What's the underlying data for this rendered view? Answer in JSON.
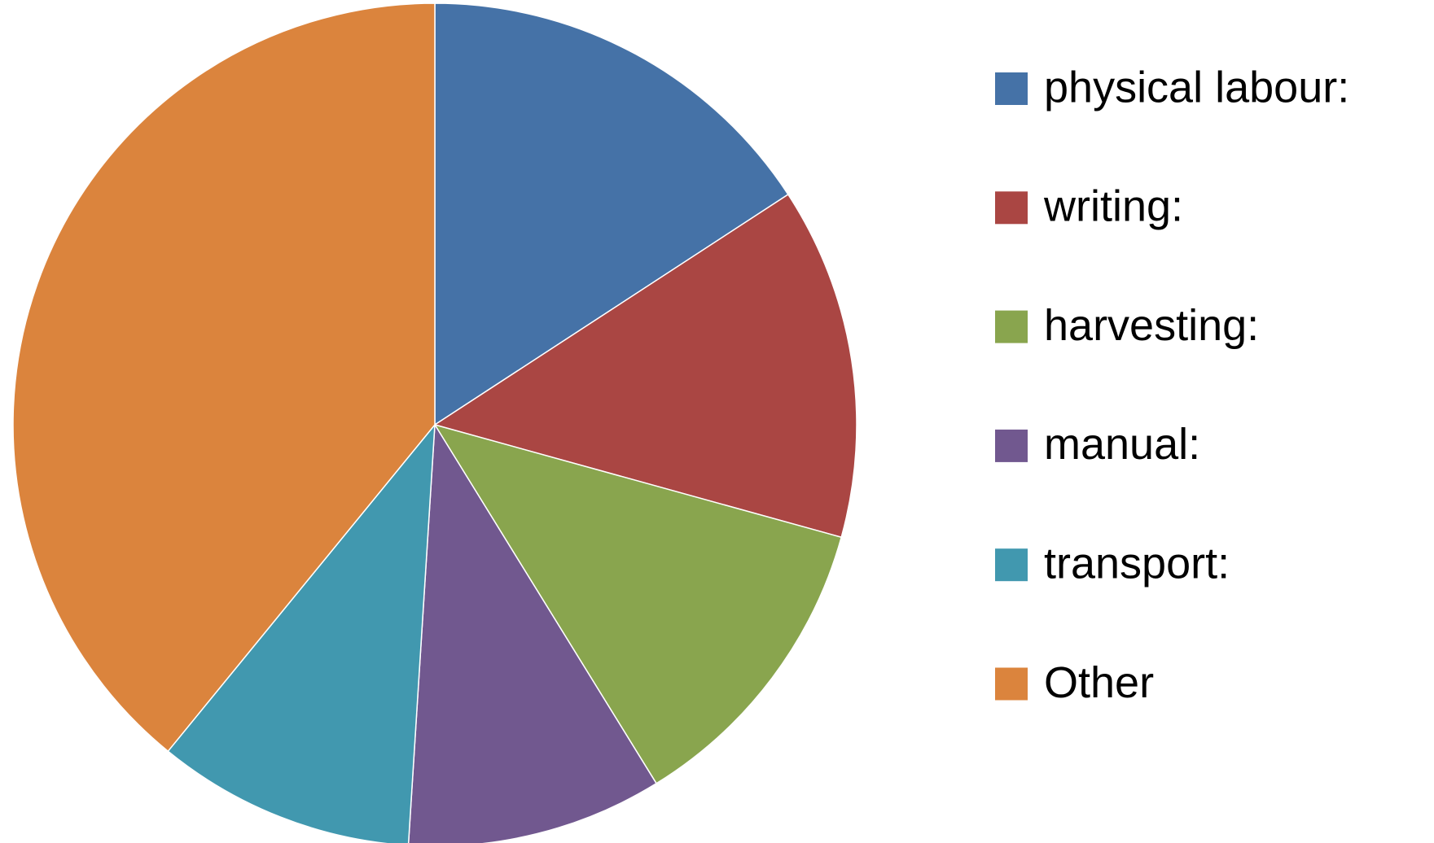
{
  "chart_data": {
    "type": "pie",
    "categories": [
      "physical labour:",
      "writing:",
      "harvesting:",
      "manual:",
      "transport:",
      "Other"
    ],
    "values": [
      15.8,
      13.5,
      11.9,
      9.8,
      9.9,
      39.1
    ],
    "colors": [
      "#4572a7",
      "#aa4643",
      "#89a54e",
      "#71588f",
      "#4198af",
      "#db843d"
    ],
    "legend": "right"
  }
}
